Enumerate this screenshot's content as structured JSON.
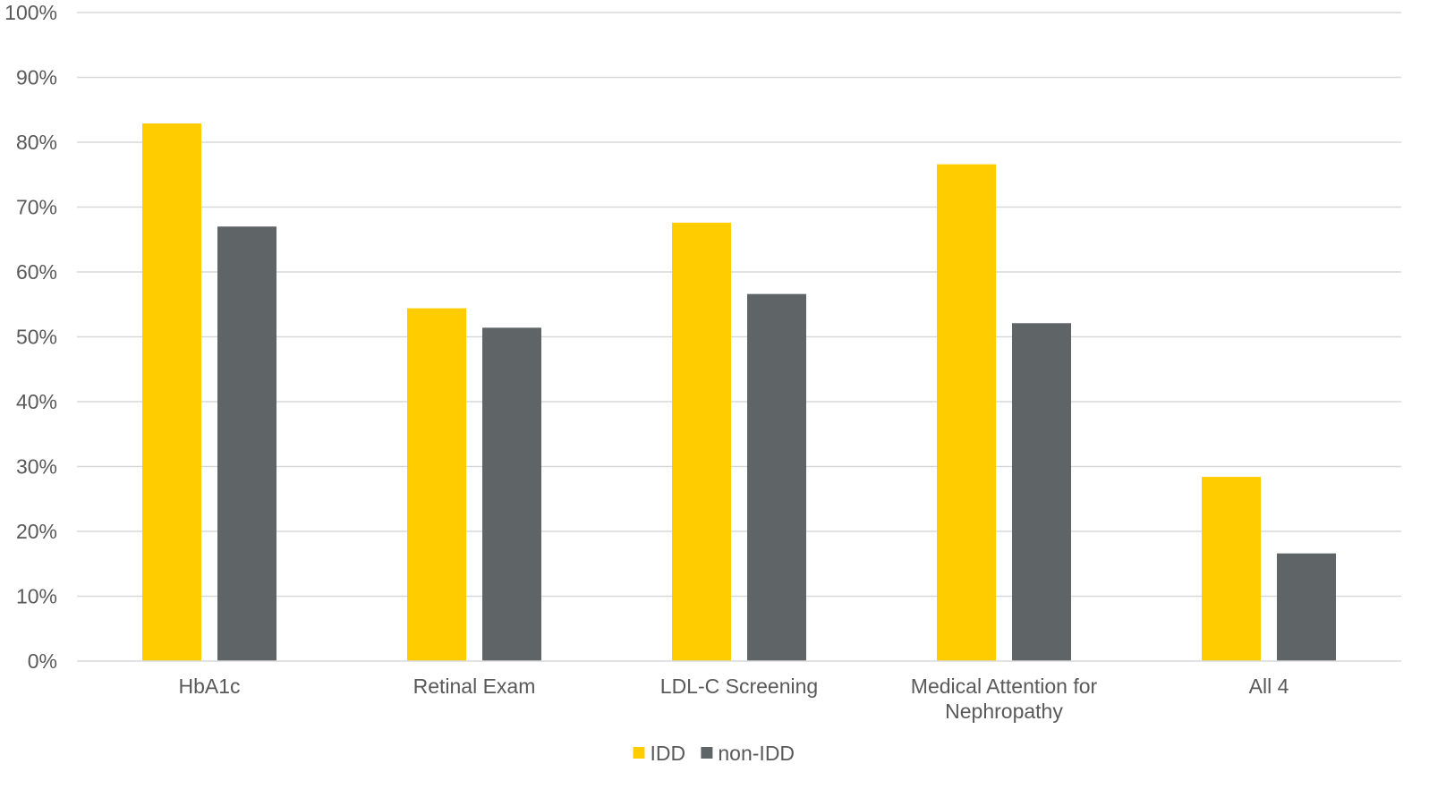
{
  "chart_data": {
    "type": "bar",
    "title": "",
    "xlabel": "",
    "ylabel": "",
    "ylim": [
      0,
      100
    ],
    "y_ticks": [
      0,
      10,
      20,
      30,
      40,
      50,
      60,
      70,
      80,
      90,
      100
    ],
    "y_tick_suffix": "%",
    "grid": true,
    "legend_position": "bottom-center",
    "categories": [
      [
        "HbA1c"
      ],
      [
        "Retinal Exam"
      ],
      [
        "LDL-C Screening"
      ],
      [
        "Medical Attention for",
        "Nephropathy"
      ],
      [
        "All 4"
      ]
    ],
    "series": [
      {
        "name": "IDD",
        "color": "#FFCC00",
        "values": [
          82.9,
          54.4,
          67.6,
          76.6,
          28.4
        ]
      },
      {
        "name": "non-IDD",
        "color": "#5F6466",
        "values": [
          67.0,
          51.4,
          56.6,
          52.1,
          16.6
        ]
      }
    ]
  }
}
